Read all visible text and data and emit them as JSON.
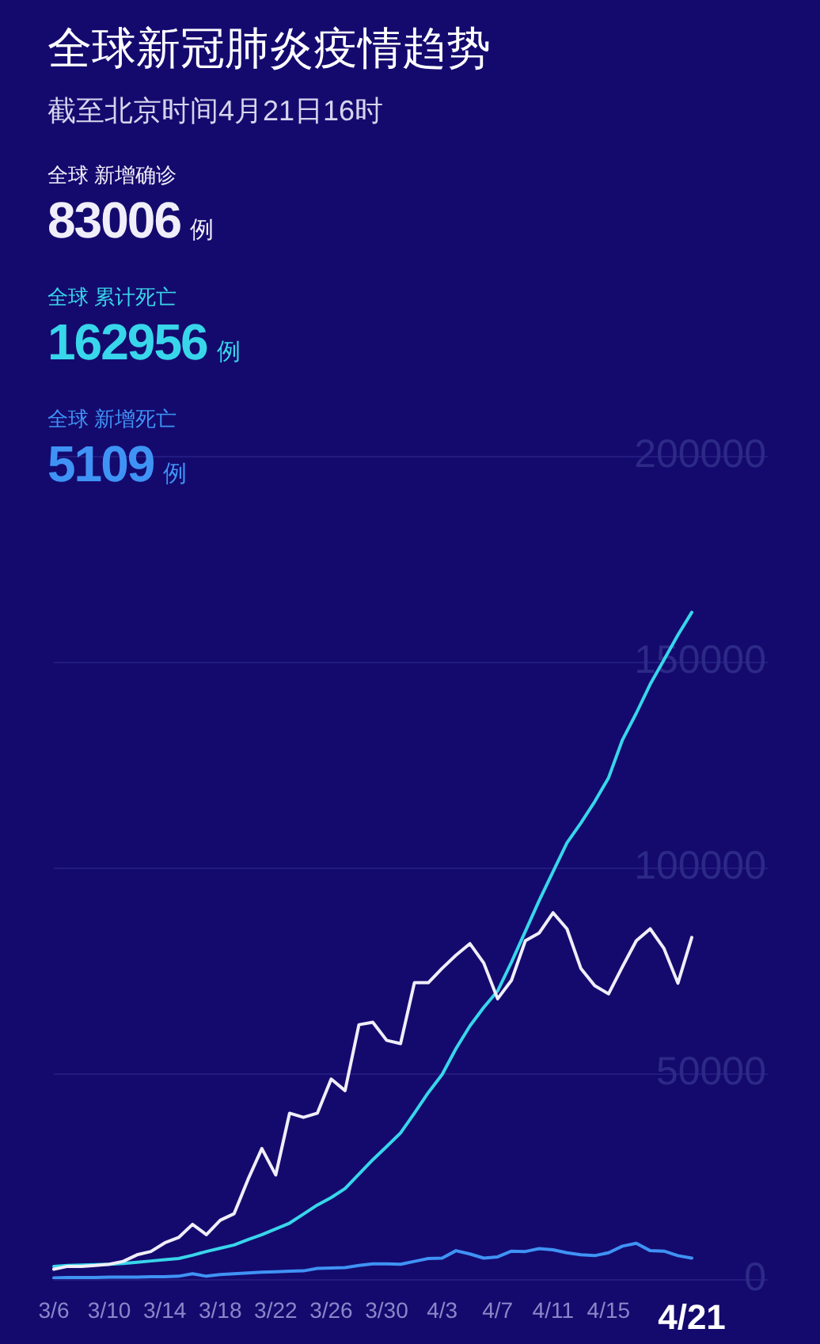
{
  "chart_data": {
    "type": "line",
    "title": "全球新冠肺炎疫情趋势",
    "subtitle": "截至北京时间4月21日16时",
    "categories": [
      "3/6",
      null,
      null,
      null,
      "3/10",
      null,
      null,
      null,
      "3/14",
      null,
      null,
      null,
      "3/18",
      null,
      null,
      null,
      "3/22",
      null,
      null,
      null,
      "3/26",
      null,
      null,
      null,
      "3/30",
      null,
      null,
      null,
      "4/3",
      null,
      null,
      null,
      "4/7",
      null,
      null,
      null,
      "4/11",
      null,
      null,
      null,
      "4/15",
      null,
      null,
      null,
      null,
      null,
      "4/21"
    ],
    "series": [
      {
        "name": "全球 新增确诊",
        "color": "#f0eef8",
        "values": [
          2400,
          3100,
          3100,
          3300,
          3600,
          4300,
          5900,
          6700,
          8800,
          10100,
          13300,
          10800,
          14300,
          15900,
          24200,
          31700,
          25300,
          40300,
          39300,
          40300,
          48600,
          45800,
          61800,
          62400,
          58000,
          57200,
          72000,
          72000,
          75500,
          78700,
          81500,
          76800,
          68100,
          72600,
          82200,
          84100,
          89000,
          85100,
          75500,
          71300,
          69300,
          75900,
          82200,
          85100,
          80300,
          71900,
          83000
        ]
      },
      {
        "name": "全球 累计死亡",
        "color": "#38d6ea",
        "values": [
          3100,
          3300,
          3400,
          3500,
          3600,
          3800,
          4100,
          4400,
          4700,
          5000,
          5800,
          6700,
          7500,
          8300,
          9600,
          10800,
          12200,
          13600,
          15800,
          18000,
          19800,
          22000,
          25500,
          29000,
          32200,
          35500,
          40300,
          45300,
          49700,
          56000,
          61500,
          66000,
          70000,
          77000,
          84500,
          92000,
          99000,
          106000,
          110800,
          116000,
          121800,
          131000,
          137500,
          144500,
          150500,
          156500,
          162000
        ]
      },
      {
        "name": "全球 新增死亡",
        "color": "#3f93f5",
        "values": [
          300,
          400,
          400,
          400,
          500,
          500,
          500,
          600,
          600,
          700,
          1300,
          700,
          1100,
          1300,
          1500,
          1700,
          1800,
          1900,
          2000,
          2600,
          2700,
          2800,
          3300,
          3700,
          3700,
          3600,
          4300,
          5000,
          5100,
          6900,
          6100,
          5100,
          5400,
          6800,
          6700,
          7400,
          7100,
          6400,
          5900,
          5700,
          6400,
          8000,
          8700,
          6900,
          6800,
          5700,
          5100
        ]
      }
    ],
    "annotations": [
      "83006 例",
      "162956 例",
      "5109 例"
    ],
    "ylim": [
      0,
      200000
    ],
    "yticks": [
      0,
      50000,
      100000,
      150000,
      200000
    ],
    "grid": "y",
    "legend": "top left",
    "marker": "none"
  }
}
